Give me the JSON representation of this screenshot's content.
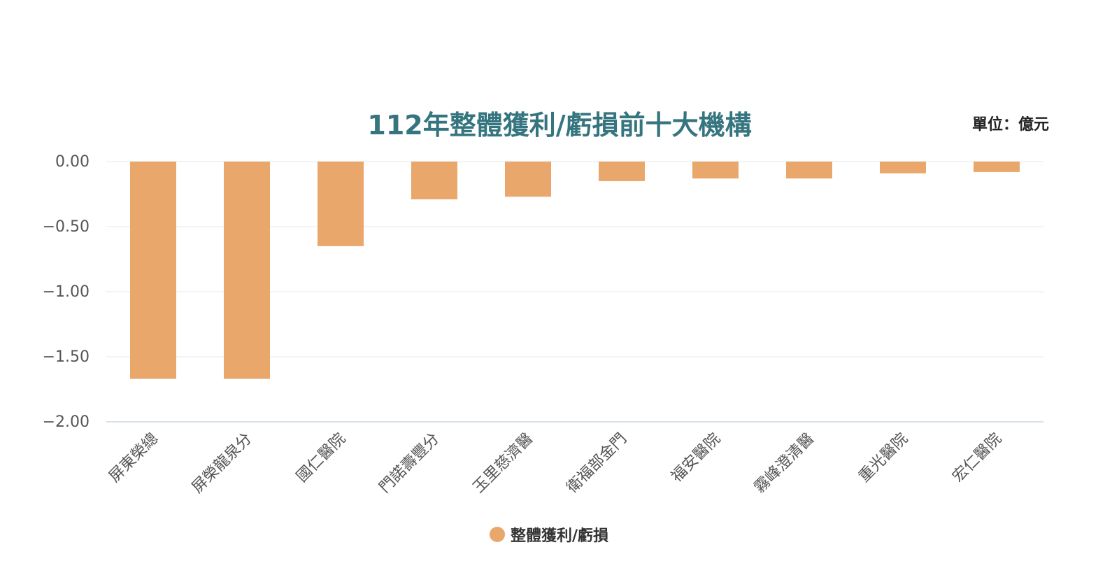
{
  "colors": {
    "title": "#35757f",
    "bar": "#eaa76b",
    "grid": "#e3e8ec",
    "baseline": "#c9d9e4",
    "tick_text": "#555555",
    "category_text": "#555555"
  },
  "unit_label": "單位：億元",
  "chart_data": {
    "type": "bar",
    "title": "112年整體獲利/虧損前十大機構",
    "xlabel": "",
    "ylabel": "",
    "categories": [
      "屏東榮總",
      "屏榮龍泉分",
      "國仁醫院",
      "門諾壽豐分",
      "玉里慈濟醫",
      "衛福部金門",
      "福安醫院",
      "霧峰澄清醫",
      "重光醫院",
      "宏仁醫院"
    ],
    "series": [
      {
        "name": "整體獲利/虧損",
        "values": [
          -1.67,
          -1.67,
          -0.65,
          -0.29,
          -0.27,
          -0.15,
          -0.13,
          -0.13,
          -0.09,
          -0.08
        ]
      }
    ],
    "ylim": [
      -2.0,
      0.0
    ],
    "y_ticks": [
      "0.00",
      "−0.50",
      "−1.00",
      "−1.50",
      "−2.00"
    ],
    "y_tick_values": [
      0,
      -0.5,
      -1.0,
      -1.5,
      -2.0
    ],
    "grid": true,
    "legend_position": "bottom-center"
  }
}
